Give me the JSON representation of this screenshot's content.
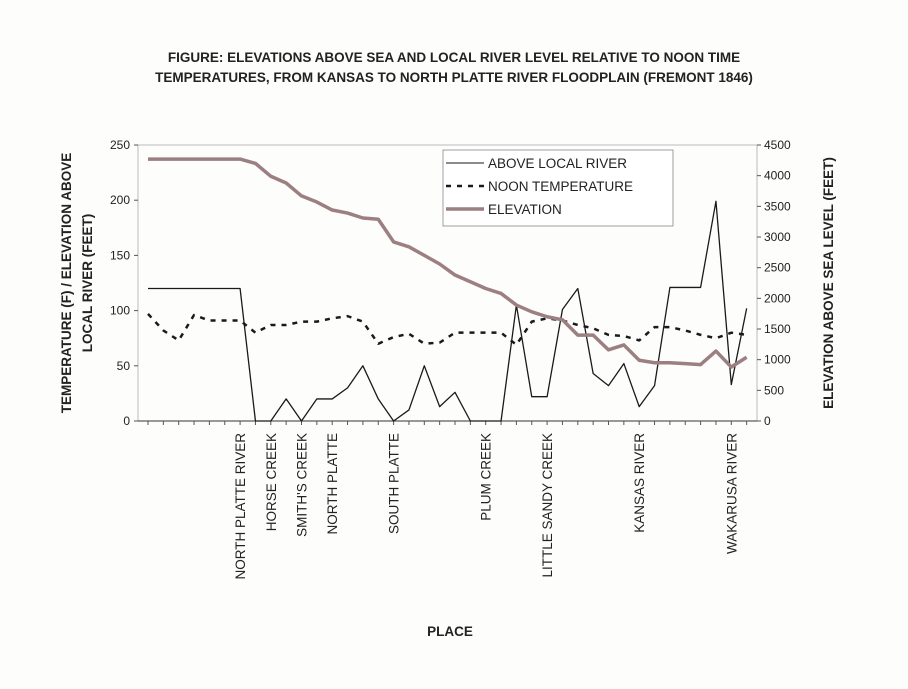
{
  "chart_data": {
    "type": "line",
    "title": [
      "FIGURE: ELEVATIONS ABOVE SEA AND LOCAL RIVER LEVEL RELATIVE TO NOON TIME",
      "TEMPERATURES, FROM KANSAS TO NORTH PLATTE RIVER  FLOODPLAIN (FREMONT 1846)"
    ],
    "xlabel": "PLACE",
    "ylabel": [
      "TEMPERATURE (F) / ELEVATION ABOVE",
      "LOCAL RIVER  (FEET)"
    ],
    "y2label": "ELEVATION ABOVE SEA LEVEL (FEET)",
    "ylim": [
      0,
      250
    ],
    "yticks": [
      0,
      50,
      100,
      150,
      200,
      250
    ],
    "y2lim": [
      0,
      4500
    ],
    "y2ticks": [
      0,
      500,
      1000,
      1500,
      2000,
      2500,
      3000,
      3500,
      4000,
      4500
    ],
    "legend_position": "top-center",
    "categories": [
      "",
      "",
      "",
      "",
      "",
      "",
      "NORTH PLATTE RIVER",
      "",
      "HORSE CREEK",
      "",
      "SMITH'S CREEK",
      "",
      "NORTH PLATTE",
      "",
      "",
      "",
      "SOUTH PLATTE",
      "",
      "",
      "",
      "",
      "",
      "PLUM CREEK",
      "",
      "",
      "",
      "LITTLE SANDY CREEK",
      "",
      "",
      "",
      "",
      "",
      "KANSAS RIVER",
      "",
      "",
      "",
      "",
      "",
      "WAKARUSA RIVER",
      ""
    ],
    "series": [
      {
        "name": "ABOVE LOCAL RIVER",
        "axis": "left",
        "style": "solid",
        "color": "#1a1a1a",
        "values": [
          120,
          120,
          120,
          120,
          120,
          120,
          120,
          0,
          0,
          20,
          0,
          20,
          20,
          30,
          50,
          20,
          0,
          10,
          50,
          13,
          26,
          0,
          0,
          0,
          105,
          22,
          22,
          101,
          120,
          43,
          32,
          52,
          13,
          32,
          121,
          121,
          121,
          199,
          33,
          102
        ]
      },
      {
        "name": "NOON TEMPERATURE",
        "axis": "left",
        "style": "dashed",
        "color": "#1a1a1a",
        "values": [
          97,
          82,
          73,
          96,
          91,
          91,
          91,
          80,
          87,
          87,
          90,
          90,
          93,
          95,
          90,
          70,
          76,
          79,
          70,
          71,
          80,
          80,
          80,
          80,
          69,
          90,
          93,
          91,
          87,
          84,
          78,
          77,
          73,
          85,
          85,
          82,
          78,
          75,
          80,
          78
        ]
      },
      {
        "name": "ELEVATION",
        "axis": "right",
        "style": "thick",
        "color": "#9c7f80",
        "values": [
          4270,
          4270,
          4270,
          4270,
          4270,
          4270,
          4270,
          4200,
          3990,
          3880,
          3670,
          3570,
          3440,
          3390,
          3310,
          3290,
          2920,
          2840,
          2700,
          2560,
          2380,
          2270,
          2160,
          2080,
          1890,
          1780,
          1700,
          1650,
          1400,
          1400,
          1160,
          1240,
          990,
          950,
          950,
          935,
          920,
          1140,
          880,
          1040
        ]
      }
    ]
  }
}
